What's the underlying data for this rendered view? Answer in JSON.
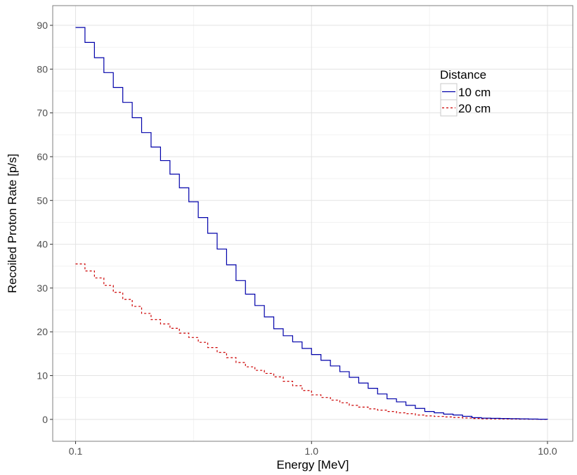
{
  "chart_data": {
    "type": "line",
    "step": true,
    "title": "",
    "xlabel": "Energy [MeV]",
    "ylabel": "Recoiled Proton Rate [p/s]",
    "x_scale": "log",
    "xlim": [
      0.08,
      12.8
    ],
    "ylim": [
      -5,
      94.5
    ],
    "x_ticks": [
      0.1,
      1.0,
      10.0
    ],
    "x_tick_labels": [
      "0.1",
      "1.0",
      "10.0"
    ],
    "y_ticks": [
      0,
      10,
      20,
      30,
      40,
      50,
      60,
      70,
      80,
      90
    ],
    "y_tick_labels": [
      "0",
      "10",
      "20",
      "30",
      "40",
      "50",
      "60",
      "70",
      "80",
      "90"
    ],
    "grid": true,
    "legend": {
      "title": "Distance",
      "placement": "top-right"
    },
    "x": [
      0.1,
      0.1096,
      0.1202,
      0.1318,
      0.1445,
      0.1585,
      0.1738,
      0.1905,
      0.2089,
      0.2291,
      0.2512,
      0.2754,
      0.302,
      0.3311,
      0.3631,
      0.3981,
      0.4365,
      0.4786,
      0.5248,
      0.5754,
      0.631,
      0.6918,
      0.7586,
      0.8318,
      0.912,
      1.0,
      1.0965,
      1.2023,
      1.3183,
      1.4454,
      1.5849,
      1.7378,
      1.9055,
      2.0893,
      2.2909,
      2.5119,
      2.7542,
      3.02,
      3.3113,
      3.6308,
      3.9811,
      4.3652,
      4.7863,
      5.2481,
      5.7544,
      6.3096,
      6.9183,
      7.5858,
      8.3176,
      9.1201,
      10.0
    ],
    "series": [
      {
        "name": "10 cm",
        "color": "#0000aa",
        "dash": "solid",
        "values": [
          89.5,
          86.1,
          82.6,
          79.2,
          75.8,
          72.4,
          68.9,
          65.5,
          62.2,
          59.1,
          56.0,
          52.9,
          49.7,
          46.1,
          42.5,
          38.9,
          35.3,
          31.7,
          28.6,
          26.0,
          23.4,
          20.7,
          19.1,
          17.7,
          16.2,
          14.8,
          13.5,
          12.2,
          10.9,
          9.6,
          8.3,
          7.1,
          5.8,
          4.7,
          4.0,
          3.2,
          2.5,
          1.8,
          1.5,
          1.2,
          1.0,
          0.7,
          0.4,
          0.28,
          0.24,
          0.2,
          0.16,
          0.12,
          0.08,
          0.04,
          0
        ]
      },
      {
        "name": "20 cm",
        "color": "#cc0000",
        "dash": "dashed",
        "values": [
          35.5,
          33.9,
          32.3,
          30.6,
          29.0,
          27.4,
          25.8,
          24.2,
          22.8,
          21.8,
          20.8,
          19.7,
          18.7,
          17.6,
          16.4,
          15.3,
          14.1,
          13.0,
          12.0,
          11.2,
          10.5,
          9.7,
          8.7,
          7.7,
          6.6,
          5.6,
          5.0,
          4.4,
          3.8,
          3.2,
          2.8,
          2.4,
          2.1,
          1.8,
          1.5,
          1.3,
          1.0,
          0.8,
          0.67,
          0.56,
          0.44,
          0.32,
          0.2,
          0.14,
          0.12,
          0.1,
          0.08,
          0.06,
          0.04,
          0.02,
          0
        ]
      }
    ]
  }
}
